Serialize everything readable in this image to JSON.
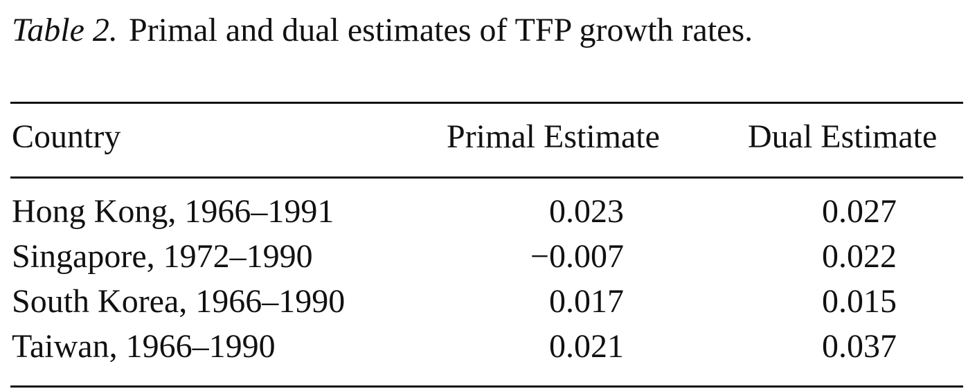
{
  "caption": {
    "label": "Table 2.",
    "title": "Primal and dual estimates of TFP growth rates."
  },
  "table": {
    "headers": [
      "Country",
      "Primal Estimate",
      "Dual Estimate"
    ],
    "rows": [
      {
        "country": "Hong Kong, 1966–1991",
        "primal": "0.023",
        "dual": "0.027"
      },
      {
        "country": "Singapore, 1972–1990",
        "primal": "−0.007",
        "dual": "0.022"
      },
      {
        "country": "South Korea, 1966–1990",
        "primal": "0.017",
        "dual": "0.015"
      },
      {
        "country": "Taiwan, 1966–1990",
        "primal": "0.021",
        "dual": "0.037"
      }
    ]
  }
}
